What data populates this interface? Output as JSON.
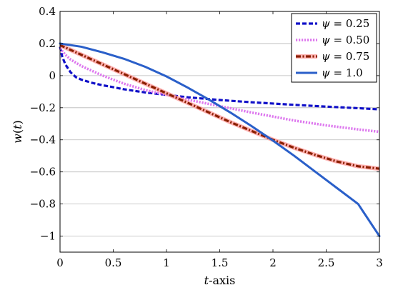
{
  "chart_data": {
    "type": "line",
    "title": "",
    "xlabel": "t-axis",
    "ylabel": "w(t)",
    "xlim": [
      0,
      3
    ],
    "ylim": [
      -1.1,
      0.4
    ],
    "xticks": [
      0,
      0.5,
      1,
      1.5,
      2,
      2.5,
      3
    ],
    "xtick_labels": [
      "0",
      "0.5",
      "1",
      "1.5",
      "2",
      "2.5",
      "3"
    ],
    "yticks": [
      0.4,
      0.2,
      0,
      -0.2,
      -0.4,
      -0.6,
      -0.8,
      -1
    ],
    "ytick_labels": [
      "0.4",
      "0.2",
      "0",
      "−0.2",
      "−0.4",
      "−0.6",
      "−0.8",
      "−1"
    ],
    "grid": "horizontal",
    "legend_position": "top-right",
    "series": [
      {
        "name": "ψ = 0.25",
        "color": "#1010c8",
        "style": "dashed",
        "x": [
          0,
          0.02,
          0.05,
          0.1,
          0.15,
          0.2,
          0.3,
          0.4,
          0.5,
          0.6,
          0.8,
          1.0,
          1.2,
          1.5,
          1.8,
          2.0,
          2.2,
          2.5,
          2.8,
          3.0
        ],
        "y": [
          0.18,
          0.12,
          0.07,
          0.02,
          -0.01,
          -0.025,
          -0.045,
          -0.06,
          -0.072,
          -0.085,
          -0.105,
          -0.12,
          -0.135,
          -0.152,
          -0.166,
          -0.174,
          -0.182,
          -0.193,
          -0.203,
          -0.21
        ]
      },
      {
        "name": "ψ = 0.50",
        "color": "#dd77ee",
        "style": "dotted",
        "x": [
          0,
          0.05,
          0.1,
          0.2,
          0.3,
          0.4,
          0.5,
          0.6,
          0.8,
          1.0,
          1.2,
          1.5,
          1.8,
          2.0,
          2.2,
          2.5,
          2.8,
          3.0
        ],
        "y": [
          0.17,
          0.13,
          0.1,
          0.06,
          0.03,
          0.0,
          -0.025,
          -0.05,
          -0.09,
          -0.12,
          -0.15,
          -0.19,
          -0.23,
          -0.255,
          -0.28,
          -0.31,
          -0.335,
          -0.35
        ]
      },
      {
        "name": "ψ = 0.75",
        "color": "#8b2000",
        "glow": "#ff9e9e",
        "style": "dashdot",
        "x": [
          0,
          0.1,
          0.2,
          0.3,
          0.4,
          0.5,
          0.6,
          0.8,
          1.0,
          1.2,
          1.4,
          1.6,
          1.8,
          2.0,
          2.2,
          2.4,
          2.6,
          2.8,
          3.0
        ],
        "y": [
          0.19,
          0.16,
          0.13,
          0.1,
          0.07,
          0.04,
          0.01,
          -0.05,
          -0.11,
          -0.17,
          -0.23,
          -0.29,
          -0.345,
          -0.4,
          -0.45,
          -0.495,
          -0.535,
          -0.565,
          -0.58
        ]
      },
      {
        "name": "ψ = 1.0",
        "color": "#2a5fc9",
        "style": "solid",
        "x": [
          0,
          0.2,
          0.4,
          0.6,
          0.8,
          1.0,
          1.2,
          1.4,
          1.6,
          1.8,
          2.0,
          2.2,
          2.4,
          2.6,
          2.8,
          3.0
        ],
        "y": [
          0.2,
          0.18,
          0.145,
          0.105,
          0.055,
          -0.005,
          -0.075,
          -0.15,
          -0.23,
          -0.315,
          -0.405,
          -0.5,
          -0.6,
          -0.7,
          -0.8,
          -1.0
        ]
      }
    ]
  }
}
